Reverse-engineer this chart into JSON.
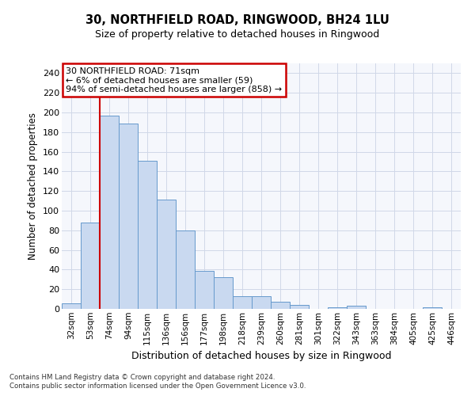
{
  "title1": "30, NORTHFIELD ROAD, RINGWOOD, BH24 1LU",
  "title2": "Size of property relative to detached houses in Ringwood",
  "xlabel": "Distribution of detached houses by size in Ringwood",
  "ylabel": "Number of detached properties",
  "categories": [
    "32sqm",
    "53sqm",
    "74sqm",
    "94sqm",
    "115sqm",
    "136sqm",
    "156sqm",
    "177sqm",
    "198sqm",
    "218sqm",
    "239sqm",
    "260sqm",
    "281sqm",
    "301sqm",
    "322sqm",
    "343sqm",
    "363sqm",
    "384sqm",
    "405sqm",
    "425sqm",
    "446sqm"
  ],
  "values": [
    6,
    88,
    197,
    189,
    151,
    111,
    80,
    39,
    32,
    13,
    13,
    7,
    4,
    0,
    2,
    3,
    0,
    0,
    0,
    2,
    0
  ],
  "bar_color": "#c9d9f0",
  "bar_edge_color": "#6699cc",
  "grid_color": "#d0d8e8",
  "bg_color": "#f5f7fc",
  "annotation_box_text": "30 NORTHFIELD ROAD: 71sqm\n← 6% of detached houses are smaller (59)\n94% of semi-detached houses are larger (858) →",
  "annotation_box_color": "#cc0000",
  "red_line_x": 1.5,
  "ylim": [
    0,
    250
  ],
  "yticks": [
    0,
    20,
    40,
    60,
    80,
    100,
    120,
    140,
    160,
    180,
    200,
    220,
    240
  ],
  "footer1": "Contains HM Land Registry data © Crown copyright and database right 2024.",
  "footer2": "Contains public sector information licensed under the Open Government Licence v3.0."
}
